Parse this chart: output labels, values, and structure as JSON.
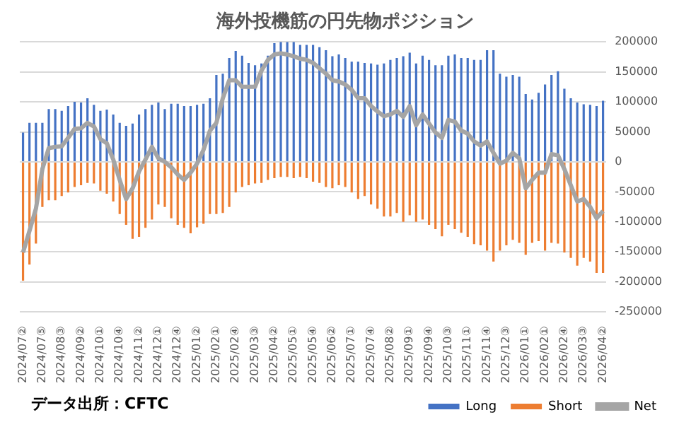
{
  "chart_data": {
    "type": "bar",
    "title": "海外投機筋の円先物ポジション",
    "categories": [
      "2024/07②",
      null,
      null,
      "2024/07⑤",
      null,
      null,
      "2024/08③",
      null,
      null,
      "2024/09②",
      null,
      null,
      "2024/10①",
      null,
      null,
      "2024/10④",
      null,
      null,
      "2024/11②",
      null,
      null,
      "2024/12①",
      null,
      null,
      "2024/12④",
      null,
      null,
      "2025/01②",
      null,
      null,
      "2025/02①",
      null,
      null,
      "2025/02④",
      null,
      null,
      "2025/03③",
      null,
      null,
      "2025/04②",
      null,
      null,
      "2025/05①",
      null,
      null,
      "2025/05④",
      null,
      null,
      "2025/06②",
      null,
      null,
      "2025/07①",
      null,
      null,
      "2025/07④",
      null,
      null,
      "2025/08②",
      null,
      null,
      "2025/09①",
      null,
      null,
      "2025/09④",
      null,
      null,
      "2025/10③",
      null,
      null,
      "2025/11①",
      null,
      null,
      "2025/11④",
      null,
      null,
      "2025/12③",
      null,
      null,
      "2026/01①",
      null,
      null,
      "2026/02①",
      null,
      null,
      "2026/02④",
      null,
      null,
      "2026/03③",
      null,
      null,
      "2026/04②"
    ],
    "series": [
      {
        "name": "Long",
        "color": "#4472c4",
        "values": [
          49000,
          65000,
          65000,
          65000,
          88000,
          88000,
          85000,
          93000,
          100000,
          99000,
          106000,
          95000,
          85000,
          87000,
          79000,
          65000,
          60000,
          64000,
          79000,
          88000,
          95000,
          99000,
          88000,
          97000,
          97000,
          93000,
          93000,
          95000,
          97000,
          106000,
          145000,
          147000,
          173000,
          185000,
          177000,
          165000,
          161000,
          164000,
          177000,
          198000,
          200000,
          200000,
          200000,
          195000,
          195000,
          195000,
          191000,
          186000,
          176000,
          179000,
          173000,
          167000,
          167000,
          165000,
          164000,
          162000,
          164000,
          170000,
          173000,
          176000,
          182000,
          164000,
          177000,
          170000,
          161000,
          161000,
          177000,
          179000,
          173000,
          173000,
          170000,
          170000,
          186000,
          186000,
          147000,
          142000,
          145000,
          142000,
          113000,
          104000,
          115000,
          129000,
          145000,
          151000,
          122000,
          106000,
          99000,
          96000,
          95000,
          93000,
          102000
        ]
      },
      {
        "name": "Short",
        "color": "#ed7d31",
        "values": [
          -198000,
          -171000,
          -136000,
          -75000,
          -64000,
          -64000,
          -57000,
          -51000,
          -42000,
          -39000,
          -35000,
          -36000,
          -48000,
          -53000,
          -66000,
          -87000,
          -105000,
          -128000,
          -125000,
          -110000,
          -96000,
          -71000,
          -75000,
          -94000,
          -105000,
          -110000,
          -119000,
          -109000,
          -103000,
          -87000,
          -87000,
          -85000,
          -75000,
          -51000,
          -42000,
          -39000,
          -36000,
          -35000,
          -30000,
          -27000,
          -25000,
          -25000,
          -27000,
          -25000,
          -27000,
          -33000,
          -35000,
          -42000,
          -44000,
          -39000,
          -42000,
          -51000,
          -62000,
          -57000,
          -71000,
          -78000,
          -91000,
          -91000,
          -85000,
          -100000,
          -89000,
          -100000,
          -96000,
          -105000,
          -112000,
          -124000,
          -105000,
          -112000,
          -118000,
          -125000,
          -137000,
          -139000,
          -148000,
          -166000,
          -148000,
          -139000,
          -130000,
          -135000,
          -155000,
          -135000,
          -132000,
          -148000,
          -135000,
          -136000,
          -151000,
          -160000,
          -173000,
          -160000,
          -166000,
          -185000,
          -185000
        ]
      },
      {
        "name": "Net",
        "type": "line",
        "color": "#a5a5a5",
        "values": [
          -151000,
          -115000,
          -78000,
          -12000,
          23000,
          25000,
          26000,
          40000,
          55000,
          56000,
          65000,
          59000,
          38000,
          31000,
          4000,
          -30000,
          -62000,
          -44000,
          -16000,
          4000,
          25000,
          6000,
          0,
          -9000,
          -21000,
          -30000,
          -18000,
          -3000,
          20000,
          52000,
          65000,
          106000,
          136000,
          136000,
          125000,
          125000,
          125000,
          152000,
          170000,
          179000,
          181000,
          179000,
          176000,
          172000,
          170000,
          165000,
          156000,
          147000,
          136000,
          134000,
          129000,
          120000,
          106000,
          106000,
          93000,
          84000,
          76000,
          79000,
          85000,
          75000,
          93000,
          61000,
          79000,
          64000,
          49000,
          40000,
          70000,
          67000,
          52000,
          47000,
          34000,
          27000,
          34000,
          15000,
          -3000,
          2000,
          15000,
          6000,
          -44000,
          -30000,
          -18000,
          -18000,
          13000,
          11000,
          -12000,
          -39000,
          -66000,
          -62000,
          -75000,
          -94000,
          -82000
        ]
      }
    ],
    "ylim": [
      -250000,
      200000
    ],
    "yticks": [
      -250000,
      -200000,
      -150000,
      -100000,
      -50000,
      0,
      50000,
      100000,
      150000,
      200000
    ],
    "grid": "y",
    "legend": "bottom right",
    "marker": "none",
    "annotations": [
      "データ出所：CFTC"
    ]
  }
}
